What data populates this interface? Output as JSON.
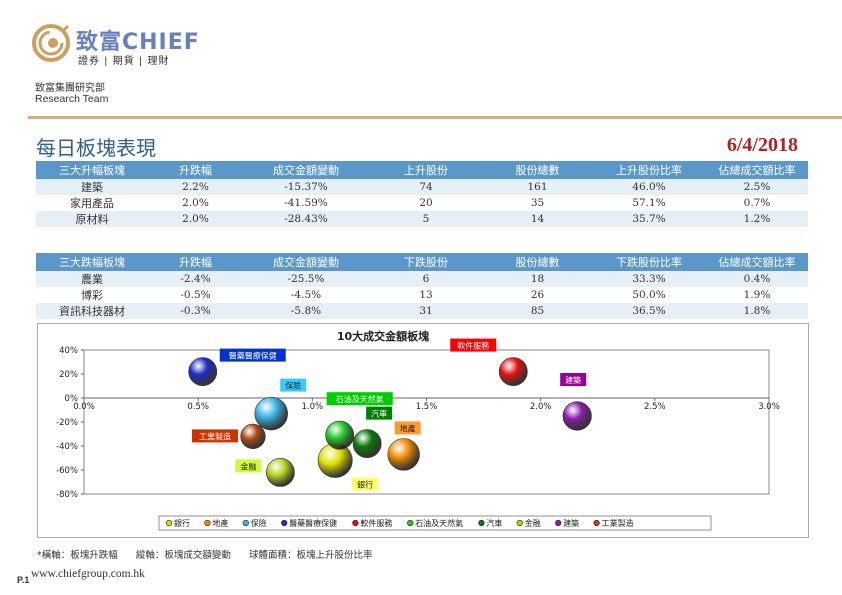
{
  "header": {
    "logo_name": "致富CHIEF",
    "logo_tagline": "證券 | 期貨 | 理財",
    "team_cn": "致富集團研究部",
    "team_en": "Research Team"
  },
  "report": {
    "title": "每日板塊表現",
    "date": "6/4/2018"
  },
  "colors": {
    "accent_rule": "#d6ad7c",
    "header_blue": "#5b97c9",
    "title_blue": "#2e5f8f",
    "date_red": "#b22222"
  },
  "top_gainers": {
    "columns": [
      "三大升幅板塊",
      "升跌幅",
      "成交金額變動",
      "上升股份",
      "股份總數",
      "上升股份比率",
      "佔總成交額比率"
    ],
    "rows": [
      [
        "建築",
        "2.2%",
        "-15.37%",
        "74",
        "161",
        "46.0%",
        "2.5%"
      ],
      [
        "家用產品",
        "2.0%",
        "-41.59%",
        "20",
        "35",
        "57.1%",
        "0.7%"
      ],
      [
        "原材料",
        "2.0%",
        "-28.43%",
        "5",
        "14",
        "35.7%",
        "1.2%"
      ]
    ]
  },
  "top_losers": {
    "columns": [
      "三大跌幅板塊",
      "升跌幅",
      "成交金額變動",
      "下跌股份",
      "股份總數",
      "下跌股份比率",
      "佔總成交額比率"
    ],
    "rows": [
      [
        "農業",
        "-2.4%",
        "-25.5%",
        "6",
        "18",
        "33.3%",
        "0.4%"
      ],
      [
        "博彩",
        "-0.5%",
        "-4.5%",
        "13",
        "26",
        "50.0%",
        "1.9%"
      ],
      [
        "資訊科技器材",
        "-0.3%",
        "-5.8%",
        "31",
        "85",
        "36.5%",
        "1.8%"
      ]
    ]
  },
  "chart_data": {
    "type": "scatter",
    "title": "10大成交金額板塊",
    "x_ticks": [
      "0.0%",
      "0.5%",
      "1.0%",
      "1.5%",
      "2.0%",
      "2.5%",
      "3.0%"
    ],
    "y_ticks": [
      "40%",
      "20%",
      "0%",
      "-20%",
      "-40%",
      "-60%",
      "-80%"
    ],
    "xlim": [
      0.0,
      3.0
    ],
    "ylim": [
      -80,
      40
    ],
    "grid": false,
    "legend_position": "bottom",
    "series": [
      {
        "name": "銀行",
        "x": 1.1,
        "y": -52,
        "size": 0.62,
        "color": "#e0e000",
        "label_dx": 30,
        "label_dy": 24,
        "label_bg": "#ffff66"
      },
      {
        "name": "地產",
        "x": 1.4,
        "y": -47,
        "size": 0.55,
        "color": "#f08c00",
        "label_dx": 4,
        "label_dy": -26,
        "label_bg": "#ff9933"
      },
      {
        "name": "保險",
        "x": 0.82,
        "y": -13,
        "size": 0.58,
        "color": "#3bb4e6",
        "label_dx": 22,
        "label_dy": -28,
        "label_bg": "#33ccff"
      },
      {
        "name": "醫藥醫療保健",
        "x": 0.52,
        "y": 22,
        "size": 0.45,
        "color": "#1f2cc8",
        "label_dx": 50,
        "label_dy": -16,
        "label_bg": "#0033cc"
      },
      {
        "name": "軟件服務",
        "x": 1.88,
        "y": 22,
        "size": 0.45,
        "color": "#e81010",
        "label_dx": -40,
        "label_dy": -26,
        "label_bg": "#ff0000"
      },
      {
        "name": "石油及天然氣",
        "x": 1.12,
        "y": -31,
        "size": 0.45,
        "color": "#28c828",
        "label_dx": 20,
        "label_dy": -36,
        "label_bg": "#00cc00"
      },
      {
        "name": "汽車",
        "x": 1.24,
        "y": -38,
        "size": 0.45,
        "color": "#0a7a0a",
        "label_dx": 12,
        "label_dy": -30,
        "label_bg": "#008000"
      },
      {
        "name": "金融",
        "x": 0.86,
        "y": -62,
        "size": 0.45,
        "color": "#b8d21e",
        "label_dx": -32,
        "label_dy": -6,
        "label_bg": "#ccff33"
      },
      {
        "name": "建築",
        "x": 2.16,
        "y": -15,
        "size": 0.46,
        "color": "#8a1cae",
        "label_dx": -4,
        "label_dy": -36,
        "label_bg": "#990099"
      },
      {
        "name": "工業製造",
        "x": 0.74,
        "y": -32,
        "size": 0.35,
        "color": "#b04a14",
        "label_dx": -38,
        "label_dy": 0,
        "label_bg": "#cc3300"
      }
    ]
  },
  "footer": {
    "note": "*橫軸：板塊升跌幅      縱軸：板塊成交額變動      球體面積：板塊上升股份比率",
    "page": "P.1",
    "website": "www.chiefgroup.com.hk"
  }
}
